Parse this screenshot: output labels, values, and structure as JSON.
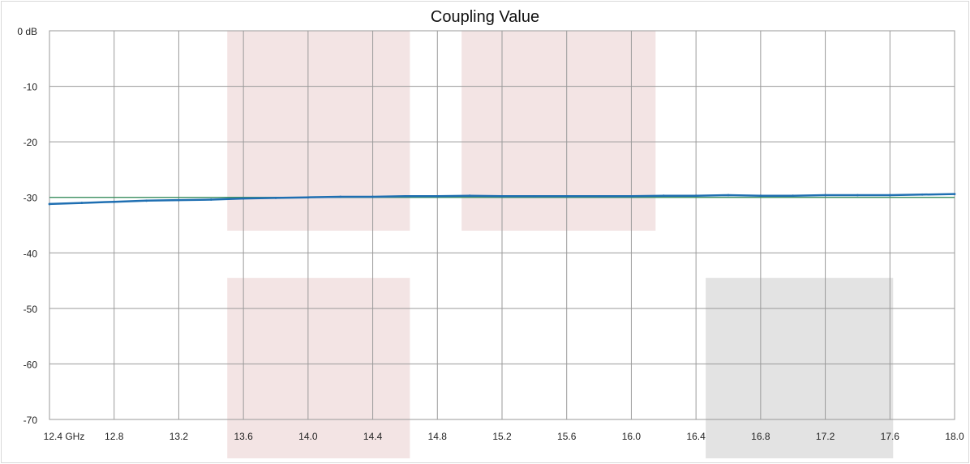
{
  "chart_data": {
    "type": "line",
    "title": "Coupling Value",
    "xlabel": "",
    "ylabel": "",
    "xlim": [
      12.4,
      18.0
    ],
    "ylim": [
      -70,
      0
    ],
    "x_ticks": [
      12.4,
      12.8,
      13.2,
      13.6,
      14.0,
      14.4,
      14.8,
      15.2,
      15.6,
      16.0,
      16.4,
      16.8,
      17.2,
      17.6,
      18.0
    ],
    "x_tick_labels": [
      "12.4 GHz",
      "12.8",
      "13.2",
      "13.6",
      "14.0",
      "14.4",
      "14.8",
      "15.2",
      "15.6",
      "16.0",
      "16.4",
      "16.8",
      "17.2",
      "17.6",
      "18.0"
    ],
    "y_ticks": [
      0,
      -10,
      -20,
      -30,
      -40,
      -50,
      -60,
      -70
    ],
    "y_tick_labels": [
      "0 dB",
      "-10",
      "-20",
      "-30",
      "-40",
      "-50",
      "-60",
      "-70"
    ],
    "grid": true,
    "legend": "none",
    "reference_line": -30,
    "series": [
      {
        "color": "#1f6fb2",
        "x": [
          12.4,
          12.6,
          12.8,
          13.0,
          13.2,
          13.4,
          13.6,
          13.8,
          14.0,
          14.2,
          14.4,
          14.6,
          14.8,
          15.0,
          15.2,
          15.4,
          15.6,
          15.8,
          16.0,
          16.2,
          16.4,
          16.6,
          16.8,
          17.0,
          17.2,
          17.4,
          17.6,
          17.8,
          18.0
        ],
        "y": [
          -31.2,
          -31.0,
          -30.8,
          -30.6,
          -30.5,
          -30.4,
          -30.2,
          -30.1,
          -30.0,
          -29.9,
          -29.9,
          -29.8,
          -29.8,
          -29.7,
          -29.8,
          -29.8,
          -29.8,
          -29.8,
          -29.8,
          -29.7,
          -29.7,
          -29.6,
          -29.7,
          -29.7,
          -29.6,
          -29.6,
          -29.6,
          -29.5,
          -29.4
        ]
      }
    ],
    "shaded_regions": [
      {
        "x": [
          13.5,
          14.63
        ],
        "y": [
          -36,
          0
        ],
        "color": "#f3e4e4"
      },
      {
        "x": [
          14.95,
          16.15
        ],
        "y": [
          -36,
          0
        ],
        "color": "#f3e4e4"
      },
      {
        "x": [
          13.5,
          14.63
        ],
        "y": [
          -44.5,
          -77
        ],
        "color": "#f3e4e4"
      },
      {
        "x": [
          16.46,
          17.62
        ],
        "y": [
          -44.5,
          -77
        ],
        "color": "#e3e3e3"
      }
    ],
    "colors": {
      "line": "#1f6fb2",
      "reference_line": "#2e8b57",
      "grid": "#9a9a9a",
      "plot_border": "#9a9a9a",
      "frame": "#d9d9d9"
    }
  }
}
